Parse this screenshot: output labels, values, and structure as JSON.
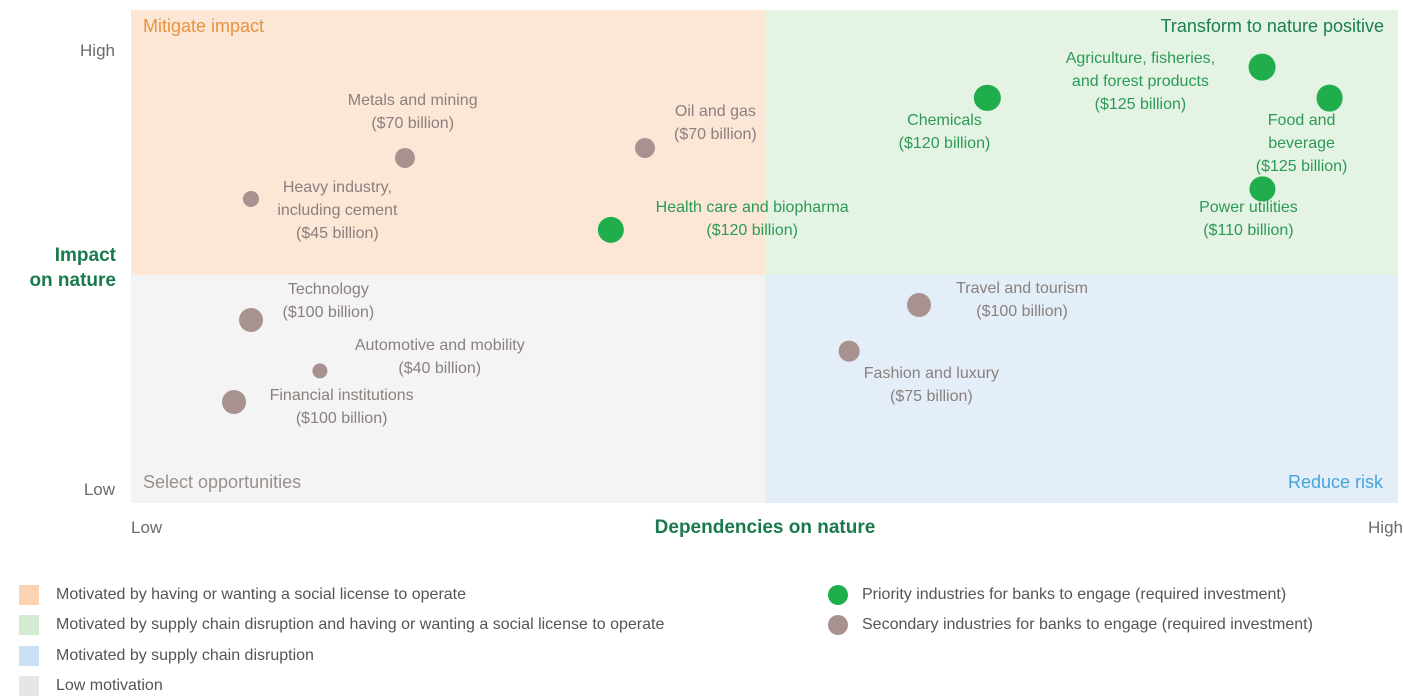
{
  "chart_data": {
    "type": "scatter",
    "x_label": "Dependencies on nature",
    "y_label": "Impact\non nature",
    "xlim": [
      0,
      1
    ],
    "ylim": [
      0,
      1
    ],
    "xticks": [
      {
        "value": 0,
        "label": "Low"
      },
      {
        "value": 1,
        "label": "High"
      }
    ],
    "yticks": [
      {
        "value": 0,
        "label": "Low"
      },
      {
        "value": 1,
        "label": "High"
      }
    ],
    "quadrants": [
      {
        "label": "Mitigate impact",
        "color": "#e8933f",
        "fill": "#fce6d5"
      },
      {
        "label": "Transform to nature positive",
        "color": "#1b7f4e",
        "fill": "#e5f3e5"
      },
      {
        "label": "Select opportunities",
        "color": "#9a8f8c",
        "fill": "#f4f4f4"
      },
      {
        "label": "Reduce risk",
        "color": "#45a5d8",
        "fill": "#e3eef9"
      }
    ],
    "legend_areas": [
      {
        "label": "Motivated by having or wanting a social license to operate",
        "color": "#fbd3b2"
      },
      {
        "label": "Motivated by supply chain disruption and having or wanting a social license to operate",
        "color": "#d2ecd3"
      },
      {
        "label": "Motivated by supply chain disruption",
        "color": "#cbe0f5"
      },
      {
        "label": "Low motivation",
        "color": "#e6e6e6"
      }
    ],
    "series": [
      {
        "name": "Priority industries for banks to engage (required investment)",
        "color": "#1fae4b",
        "label_color": "#2b9a55",
        "labels": [
          "Health care and biopharma",
          "Chemicals",
          "Agriculture, fisheries,\nand forest products",
          "Food and beverage",
          "Power utilities"
        ],
        "x": [
          0.379,
          0.676,
          0.893,
          0.946,
          0.893
        ],
        "values": [
          0.595,
          0.895,
          0.966,
          0.895,
          0.688
        ],
        "sizes": [
          120,
          120,
          125,
          125,
          110
        ],
        "size_labels": [
          "($120 billion)",
          "($120 billion)",
          "($125 billion)",
          "($125 billion)",
          "($110 billion)"
        ]
      },
      {
        "name": "Secondary industries for banks to engage (required investment)",
        "color": "#a89290",
        "label_color": "#8a807e",
        "labels": [
          "Metals and mining",
          "Oil and gas",
          "Heavy industry,\nincluding cement",
          "Technology",
          "Automotive and mobility",
          "Financial institutions",
          "Travel and tourism",
          "Fashion and luxury"
        ],
        "x": [
          0.216,
          0.406,
          0.095,
          0.095,
          0.149,
          0.081,
          0.622,
          0.567
        ],
        "values": [
          0.759,
          0.781,
          0.665,
          0.39,
          0.273,
          0.203,
          0.424,
          0.319
        ],
        "sizes": [
          70,
          70,
          45,
          100,
          40,
          100,
          100,
          75
        ],
        "size_labels": [
          "($70 billion)",
          "($70 billion)",
          "($45 billion)",
          "($100 billion)",
          "($40 billion)",
          "($100 billion)",
          "($100 billion)",
          "($75 billion)"
        ]
      }
    ]
  }
}
